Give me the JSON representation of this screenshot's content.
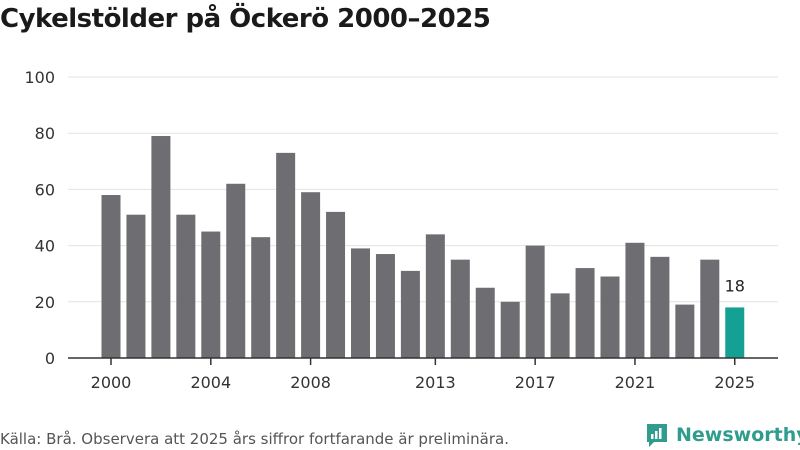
{
  "chart_data": {
    "type": "bar",
    "title": "Cykelstölder på Öckerö 2000–2025",
    "xlabel": "",
    "ylabel": "",
    "ylim": [
      0,
      100
    ],
    "yticks": [
      0,
      20,
      40,
      60,
      80,
      100
    ],
    "grid": true,
    "categories": [
      "2000",
      "2001",
      "2002",
      "2003",
      "2004",
      "2005",
      "2006",
      "2007",
      "2008",
      "2009",
      "2010",
      "2011",
      "2012",
      "2013",
      "2014",
      "2015",
      "2016",
      "2017",
      "2018",
      "2019",
      "2020",
      "2021",
      "2022",
      "2023",
      "2024",
      "2025"
    ],
    "values": [
      58,
      51,
      79,
      51,
      45,
      62,
      43,
      73,
      59,
      52,
      39,
      37,
      31,
      44,
      35,
      25,
      20,
      40,
      23,
      32,
      29,
      41,
      36,
      19,
      35,
      18
    ],
    "xtick_labels": [
      "2000",
      "2004",
      "2008",
      "2013",
      "2017",
      "2021",
      "2025"
    ],
    "highlight": {
      "category": "2025",
      "label": "18"
    },
    "colors": {
      "bar": "#6e6d72",
      "highlight": "#14a093",
      "grid": "#e3e3e3",
      "axis": "#333333"
    }
  },
  "footer": {
    "source": "Källa: Brå. Observera att 2025 års siffror fortfarande är preliminära.",
    "brand": "Newsworthy"
  }
}
